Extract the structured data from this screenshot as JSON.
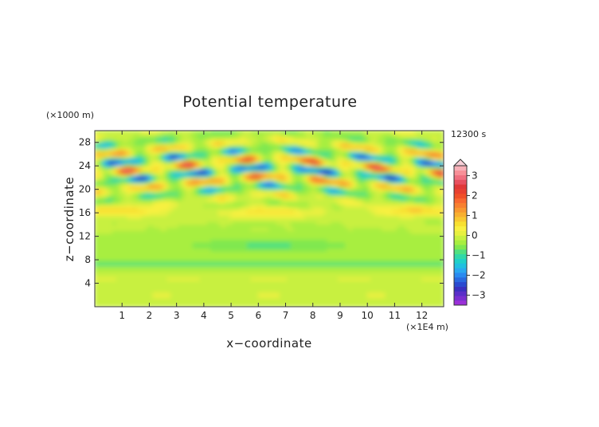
{
  "chart_data": {
    "type": "heatmap",
    "title": "Potential temperature",
    "xlabel": "x−coordinate",
    "ylabel": "z−coordinate",
    "x_unit": "(×1E4 m)",
    "y_unit": "(×1000 m)",
    "time_label": "12300 s",
    "xlim": [
      0,
      12.8
    ],
    "ylim": [
      0,
      30
    ],
    "x_ticks": [
      1,
      2,
      3,
      4,
      5,
      6,
      7,
      8,
      9,
      10,
      11,
      12
    ],
    "y_ticks": [
      4,
      8,
      12,
      16,
      20,
      24,
      28
    ],
    "colorbar": {
      "min": -3.5,
      "max": 3.5,
      "step": 0.25,
      "ticks": [
        {
          "value": 3,
          "label": "3"
        },
        {
          "value": 2,
          "label": "2"
        },
        {
          "value": 1,
          "label": "1"
        },
        {
          "value": 0,
          "label": "0"
        },
        {
          "value": -1,
          "label": "−1"
        },
        {
          "value": -2,
          "label": "−2"
        },
        {
          "value": -3,
          "label": "−3"
        }
      ],
      "colors": [
        "#9b30d8",
        "#7a2fd0",
        "#5a2fc8",
        "#3a30c0",
        "#2a4ad0",
        "#2a6ae0",
        "#2a8af0",
        "#2aa8f0",
        "#20c0e0",
        "#20d0c8",
        "#30d8a8",
        "#50e080",
        "#80e850",
        "#a8ee40",
        "#c8f040",
        "#e8f040",
        "#f8f040",
        "#f8e030",
        "#f8c830",
        "#f8b030",
        "#f89830",
        "#f88030",
        "#f86830",
        "#f05028",
        "#e84030",
        "#e03838",
        "#e85060",
        "#f07080",
        "#f89098",
        "#f8b0b8"
      ],
      "over_color": "#f8d0d8"
    },
    "grid": false,
    "legend": "colorbar right"
  }
}
